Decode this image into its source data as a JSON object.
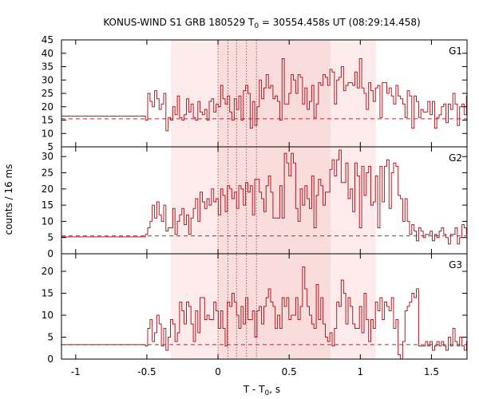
{
  "chart_data": {
    "type": "line",
    "title_parts": {
      "before": "KONUS-WIND S1 GRB 180529 T",
      "sub": "0",
      "after": " = 30554.458s UT (08:29:14.458)"
    },
    "xlabel_parts": {
      "before": "T - T",
      "sub": "0",
      "after": ", s"
    },
    "ylabel": "counts / 16 ms",
    "xlim": [
      -1.1,
      1.75
    ],
    "xticks": [
      -1,
      -0.5,
      0,
      0.5,
      1,
      1.5
    ],
    "xtick_labels": [
      "-1",
      "-0.5",
      "0",
      "0.5",
      "1",
      "1.5"
    ],
    "shaded_regions": [
      {
        "from": -0.33,
        "to": 1.11,
        "color": "#fdeaea"
      },
      {
        "from": 0.0,
        "to": 0.79,
        "color": "#f9dcdc"
      }
    ],
    "vertical_markers": [
      0.0,
      0.07,
      0.13,
      0.2,
      0.27
    ],
    "colors": {
      "data": "#b01c24",
      "background_line": "#c0202a",
      "frame": "#000000"
    },
    "panels": [
      {
        "name": "G1",
        "ylim": [
          5,
          45
        ],
        "yticks": [
          5,
          10,
          15,
          20,
          25,
          30,
          35,
          40,
          45
        ],
        "background_level": 15.5,
        "pre_trigger": {
          "from": -1.1,
          "to": -0.51,
          "value": 16.5
        },
        "bin_start": -0.51,
        "bin_width": 0.016,
        "values": [
          15,
          25,
          22,
          20,
          26,
          23,
          19,
          21,
          25,
          11,
          16,
          15,
          20,
          17,
          24,
          16,
          15,
          17,
          23,
          18,
          21,
          16,
          15,
          22,
          18,
          17,
          19,
          15,
          22,
          23,
          18,
          21,
          20,
          28,
          23,
          21,
          24,
          18,
          15,
          23,
          19,
          24,
          15,
          26,
          28,
          25,
          12,
          22,
          13,
          20,
          30,
          23,
          27,
          32,
          27,
          28,
          23,
          24,
          22,
          15,
          38,
          21,
          21,
          25,
          32,
          30,
          25,
          32,
          31,
          21,
          27,
          19,
          22,
          28,
          16,
          21,
          29,
          28,
          32,
          31,
          28,
          34,
          33,
          21,
          30,
          31,
          35,
          26,
          28,
          29,
          29,
          28,
          33,
          27,
          38,
          27,
          25,
          19,
          29,
          26,
          22,
          27,
          28,
          16,
          29,
          29,
          25,
          27,
          24,
          21,
          28,
          24,
          23,
          21,
          16,
          26,
          24,
          12,
          24,
          22,
          16,
          19,
          18,
          18,
          22,
          17,
          22,
          12,
          16,
          17,
          20,
          21,
          14,
          21,
          19,
          25,
          21,
          13,
          20,
          21,
          17,
          24,
          16,
          16,
          14,
          23,
          15,
          15,
          19,
          20,
          25,
          14,
          15
        ]
      },
      {
        "name": "G2",
        "ylim": [
          0,
          33
        ],
        "yticks": [
          0,
          5,
          10,
          15,
          20,
          25,
          30
        ],
        "background_level": 5.5,
        "pre_trigger": {
          "from": -1.1,
          "to": -0.51,
          "value": 5.2
        },
        "bin_start": -0.51,
        "bin_width": 0.016,
        "values": [
          6,
          8,
          10,
          15,
          11,
          16,
          12,
          10,
          15,
          7,
          8,
          8,
          14,
          6,
          10,
          12,
          14,
          9,
          12,
          6,
          11,
          14,
          17,
          10,
          19,
          16,
          14,
          17,
          15,
          20,
          16,
          17,
          12,
          20,
          18,
          13,
          21,
          20,
          17,
          19,
          14,
          21,
          20,
          15,
          22,
          19,
          21,
          12,
          23,
          23,
          19,
          17,
          13,
          21,
          24,
          19,
          11,
          11,
          11,
          21,
          11,
          31,
          28,
          24,
          31,
          28,
          14,
          10,
          20,
          15,
          21,
          17,
          14,
          24,
          8,
          18,
          23,
          21,
          15,
          19,
          19,
          26,
          29,
          24,
          29,
          32,
          22,
          22,
          28,
          17,
          20,
          13,
          28,
          24,
          8,
          27,
          18,
          25,
          27,
          15,
          16,
          24,
          8,
          27,
          16,
          27,
          29,
          14,
          25,
          28,
          27,
          18,
          17,
          10,
          17,
          10,
          6,
          9,
          7,
          4,
          8,
          7,
          5,
          6,
          6,
          7,
          4,
          6,
          5,
          7,
          8,
          6,
          5,
          3,
          6,
          6,
          8,
          3,
          5,
          9,
          8,
          6,
          3,
          5,
          5,
          6,
          7,
          4,
          6,
          5,
          9,
          5,
          6
        ]
      },
      {
        "name": "G3",
        "ylim": [
          0,
          24
        ],
        "yticks": [
          0,
          5,
          10,
          15,
          20
        ],
        "background_level": 3.3,
        "pre_trigger": {
          "from": -1.1,
          "to": -0.51,
          "value": 3.3
        },
        "bin_start": -0.51,
        "bin_width": 0.016,
        "values": [
          3,
          7,
          9,
          4,
          6,
          10,
          8,
          3,
          7,
          2,
          5,
          9,
          8,
          4,
          6,
          13,
          11,
          8,
          13,
          12,
          8,
          4,
          11,
          6,
          14,
          14,
          9,
          10,
          9,
          9,
          13,
          11,
          7,
          11,
          7,
          3,
          13,
          12,
          15,
          13,
          10,
          7,
          12,
          8,
          14,
          9,
          9,
          11,
          5,
          11,
          12,
          8,
          12,
          14,
          16,
          13,
          12,
          7,
          10,
          7,
          14,
          12,
          14,
          9,
          10,
          10,
          14,
          9,
          12,
          21,
          16,
          12,
          10,
          8,
          7,
          17,
          9,
          14,
          8,
          5,
          4,
          6,
          3,
          7,
          13,
          12,
          18,
          15,
          8,
          14,
          12,
          8,
          7,
          7,
          12,
          6,
          15,
          9,
          4,
          9,
          7,
          13,
          11,
          14,
          9,
          13,
          12,
          11,
          14,
          7,
          9,
          1,
          0,
          4,
          11,
          12,
          13,
          15,
          14,
          16,
          3,
          3,
          3,
          4,
          3,
          4,
          2,
          3,
          4,
          3,
          4,
          3,
          2,
          5,
          3,
          7,
          4,
          3,
          5,
          3,
          2,
          4,
          3,
          3,
          5,
          4,
          2,
          3,
          3,
          2,
          3,
          4,
          3
        ]
      }
    ]
  }
}
